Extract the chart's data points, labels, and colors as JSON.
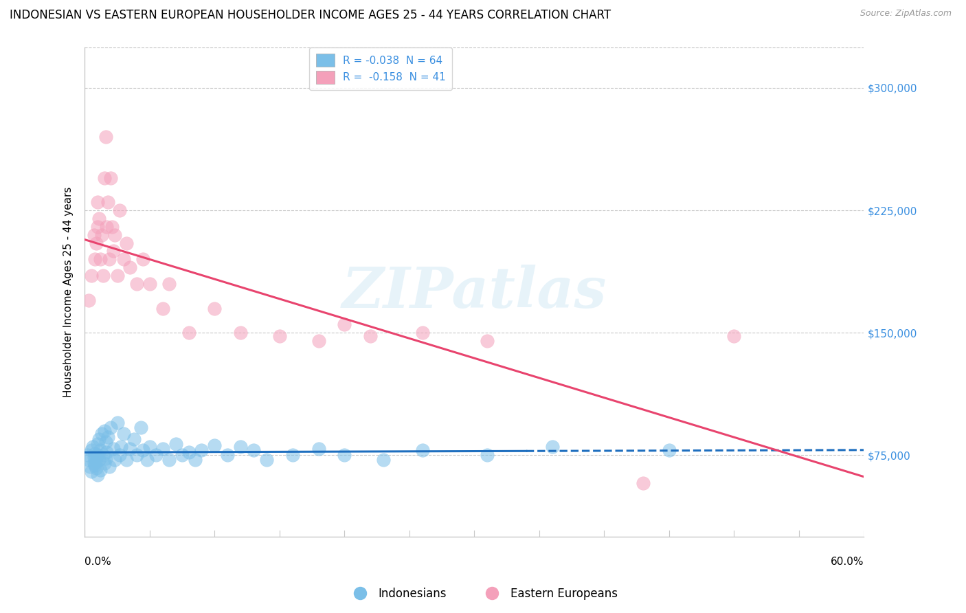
{
  "title": "INDONESIAN VS EASTERN EUROPEAN HOUSEHOLDER INCOME AGES 25 - 44 YEARS CORRELATION CHART",
  "source": "Source: ZipAtlas.com",
  "ylabel": "Householder Income Ages 25 - 44 years",
  "ytick_labels": [
    "$75,000",
    "$150,000",
    "$225,000",
    "$300,000"
  ],
  "ytick_values": [
    75000,
    150000,
    225000,
    300000
  ],
  "legend_1_label": "R = -0.038  N = 64",
  "legend_2_label": "R =  -0.158  N = 41",
  "legend_bottom_1": "Indonesians",
  "legend_bottom_2": "Eastern Europeans",
  "xlim": [
    0.0,
    0.6
  ],
  "ylim": [
    25000,
    325000
  ],
  "blue_scatter_color": "#7bbfe8",
  "pink_scatter_color": "#f4a0ba",
  "blue_line_color": "#1f6fbf",
  "pink_line_color": "#e8446e",
  "background_color": "#ffffff",
  "grid_color": "#c8c8c8",
  "indonesian_x": [
    0.002,
    0.003,
    0.004,
    0.005,
    0.005,
    0.006,
    0.007,
    0.007,
    0.008,
    0.008,
    0.009,
    0.009,
    0.01,
    0.01,
    0.01,
    0.011,
    0.011,
    0.012,
    0.012,
    0.013,
    0.014,
    0.015,
    0.015,
    0.016,
    0.016,
    0.017,
    0.018,
    0.019,
    0.02,
    0.022,
    0.023,
    0.025,
    0.027,
    0.028,
    0.03,
    0.032,
    0.035,
    0.038,
    0.04,
    0.043,
    0.045,
    0.048,
    0.05,
    0.055,
    0.06,
    0.065,
    0.07,
    0.075,
    0.08,
    0.085,
    0.09,
    0.1,
    0.11,
    0.12,
    0.13,
    0.14,
    0.16,
    0.18,
    0.2,
    0.23,
    0.26,
    0.31,
    0.36,
    0.45
  ],
  "indonesian_y": [
    75000,
    72000,
    68000,
    78000,
    65000,
    80000,
    70000,
    74000,
    76000,
    69000,
    71000,
    67000,
    82000,
    75000,
    63000,
    85000,
    72000,
    78000,
    66000,
    88000,
    75000,
    90000,
    70000,
    83000,
    73000,
    77000,
    86000,
    68000,
    92000,
    79000,
    72000,
    95000,
    75000,
    80000,
    88000,
    72000,
    79000,
    85000,
    75000,
    92000,
    78000,
    72000,
    80000,
    75000,
    79000,
    72000,
    82000,
    75000,
    77000,
    72000,
    78000,
    81000,
    75000,
    80000,
    78000,
    72000,
    75000,
    79000,
    75000,
    72000,
    78000,
    75000,
    80000,
    78000
  ],
  "eastern_x": [
    0.003,
    0.005,
    0.007,
    0.008,
    0.009,
    0.01,
    0.01,
    0.011,
    0.012,
    0.013,
    0.014,
    0.015,
    0.016,
    0.017,
    0.018,
    0.019,
    0.02,
    0.021,
    0.022,
    0.023,
    0.025,
    0.027,
    0.03,
    0.032,
    0.035,
    0.04,
    0.045,
    0.05,
    0.06,
    0.065,
    0.08,
    0.1,
    0.12,
    0.15,
    0.18,
    0.2,
    0.22,
    0.26,
    0.31,
    0.43,
    0.5
  ],
  "eastern_y": [
    170000,
    185000,
    210000,
    195000,
    205000,
    230000,
    215000,
    220000,
    195000,
    210000,
    185000,
    245000,
    270000,
    215000,
    230000,
    195000,
    245000,
    215000,
    200000,
    210000,
    185000,
    225000,
    195000,
    205000,
    190000,
    180000,
    195000,
    180000,
    165000,
    180000,
    150000,
    165000,
    150000,
    148000,
    145000,
    155000,
    148000,
    150000,
    145000,
    58000,
    148000
  ],
  "watermark_text": "ZIPatlas",
  "title_fontsize": 12,
  "axis_label_fontsize": 11,
  "tick_fontsize": 11,
  "legend_fontsize": 11
}
